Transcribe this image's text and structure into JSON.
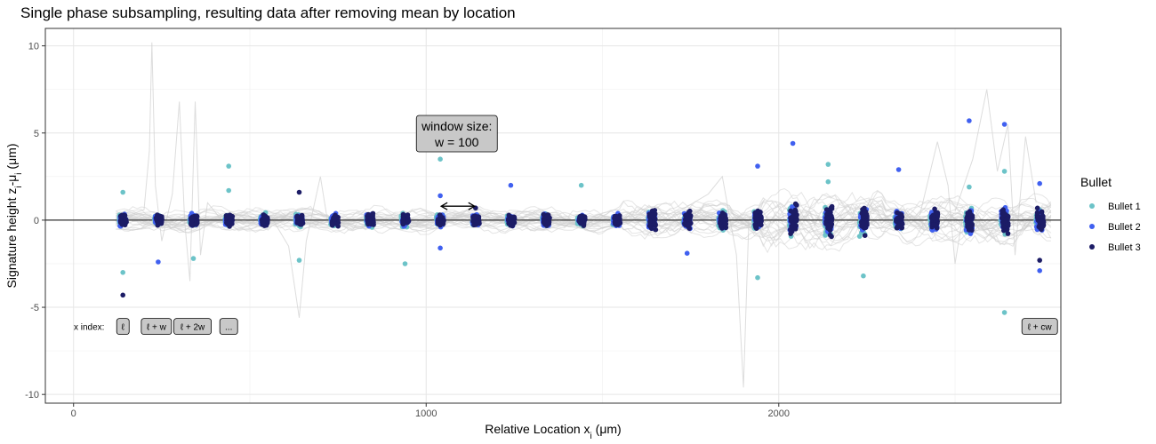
{
  "chart_data": {
    "type": "scatter",
    "title": "Single phase subsampling, resulting data after removing mean by location",
    "xlabel": "Relative Location x",
    "xlabel_sub": "i",
    "xlabel_unit": " (μm)",
    "ylabel": "Signature height z",
    "ylabel_sub1": "i",
    "ylabel_mid": "-μ",
    "ylabel_sub2": "i",
    "ylabel_unit": " (μm)",
    "xlim": [
      -80,
      2800
    ],
    "ylim": [
      -10.5,
      11
    ],
    "x_ticks": [
      0,
      1000,
      2000
    ],
    "x_tick_labels": [
      "0",
      "1000",
      "2000"
    ],
    "y_ticks": [
      -10,
      -5,
      0,
      5,
      10
    ],
    "y_tick_labels": [
      "-10",
      "-5",
      "0",
      "5",
      "10"
    ],
    "grid": true,
    "hline": 0,
    "legend": {
      "title": "Bullet",
      "position": "right",
      "entries": [
        {
          "name": "Bullet 1",
          "color": "#6cc3c8"
        },
        {
          "name": "Bullet 2",
          "color": "#4060f0"
        },
        {
          "name": "Bullet 3",
          "color": "#1c1c66"
        }
      ]
    },
    "window_locations": [
      140,
      240,
      340,
      440,
      540,
      640,
      740,
      840,
      940,
      1040,
      1140,
      1240,
      1340,
      1440,
      1540,
      1640,
      1740,
      1840,
      1940,
      2040,
      2140,
      2240,
      2340,
      2440,
      2540,
      2640,
      2740
    ],
    "series": [
      {
        "name": "Bullet 1",
        "points": [
          [
            140,
            -3.0
          ],
          [
            140,
            1.6
          ],
          [
            440,
            3.1
          ],
          [
            440,
            1.7
          ],
          [
            340,
            -2.2
          ],
          [
            640,
            -2.3
          ],
          [
            940,
            -2.5
          ],
          [
            1040,
            3.5
          ],
          [
            1440,
            2.0
          ],
          [
            1940,
            -3.3
          ],
          [
            2140,
            3.2
          ],
          [
            2140,
            2.2
          ],
          [
            2240,
            -3.2
          ],
          [
            2640,
            -5.3
          ],
          [
            2640,
            2.8
          ],
          [
            2540,
            1.9
          ]
        ]
      },
      {
        "name": "Bullet 2",
        "points": [
          [
            240,
            -2.4
          ],
          [
            1040,
            1.4
          ],
          [
            1040,
            -1.6
          ],
          [
            1240,
            2.0
          ],
          [
            1740,
            -1.9
          ],
          [
            1940,
            3.1
          ],
          [
            2040,
            4.4
          ],
          [
            2340,
            2.9
          ],
          [
            2540,
            5.7
          ],
          [
            2640,
            5.5
          ],
          [
            2740,
            2.1
          ],
          [
            2740,
            -2.9
          ]
        ]
      },
      {
        "name": "Bullet 3",
        "points": [
          [
            140,
            -4.3
          ],
          [
            640,
            1.6
          ],
          [
            1140,
            0.7
          ],
          [
            2740,
            -2.3
          ]
        ]
      }
    ],
    "annotations": {
      "window_label_line1": "window size:",
      "window_label_line2": "w = 100",
      "window_arrow_from": 1040,
      "window_arrow_to": 1140,
      "window_arrow_y": 0.8,
      "x_index_label": "x index:",
      "index_boxes": [
        {
          "x": 140,
          "label": "ℓ"
        },
        {
          "x": 240,
          "label": "ℓ + w"
        },
        {
          "x": 340,
          "label": "ℓ + 2w"
        },
        {
          "x": 440,
          "label": "..."
        },
        {
          "x": 2740,
          "label": "ℓ + cw"
        }
      ]
    }
  }
}
